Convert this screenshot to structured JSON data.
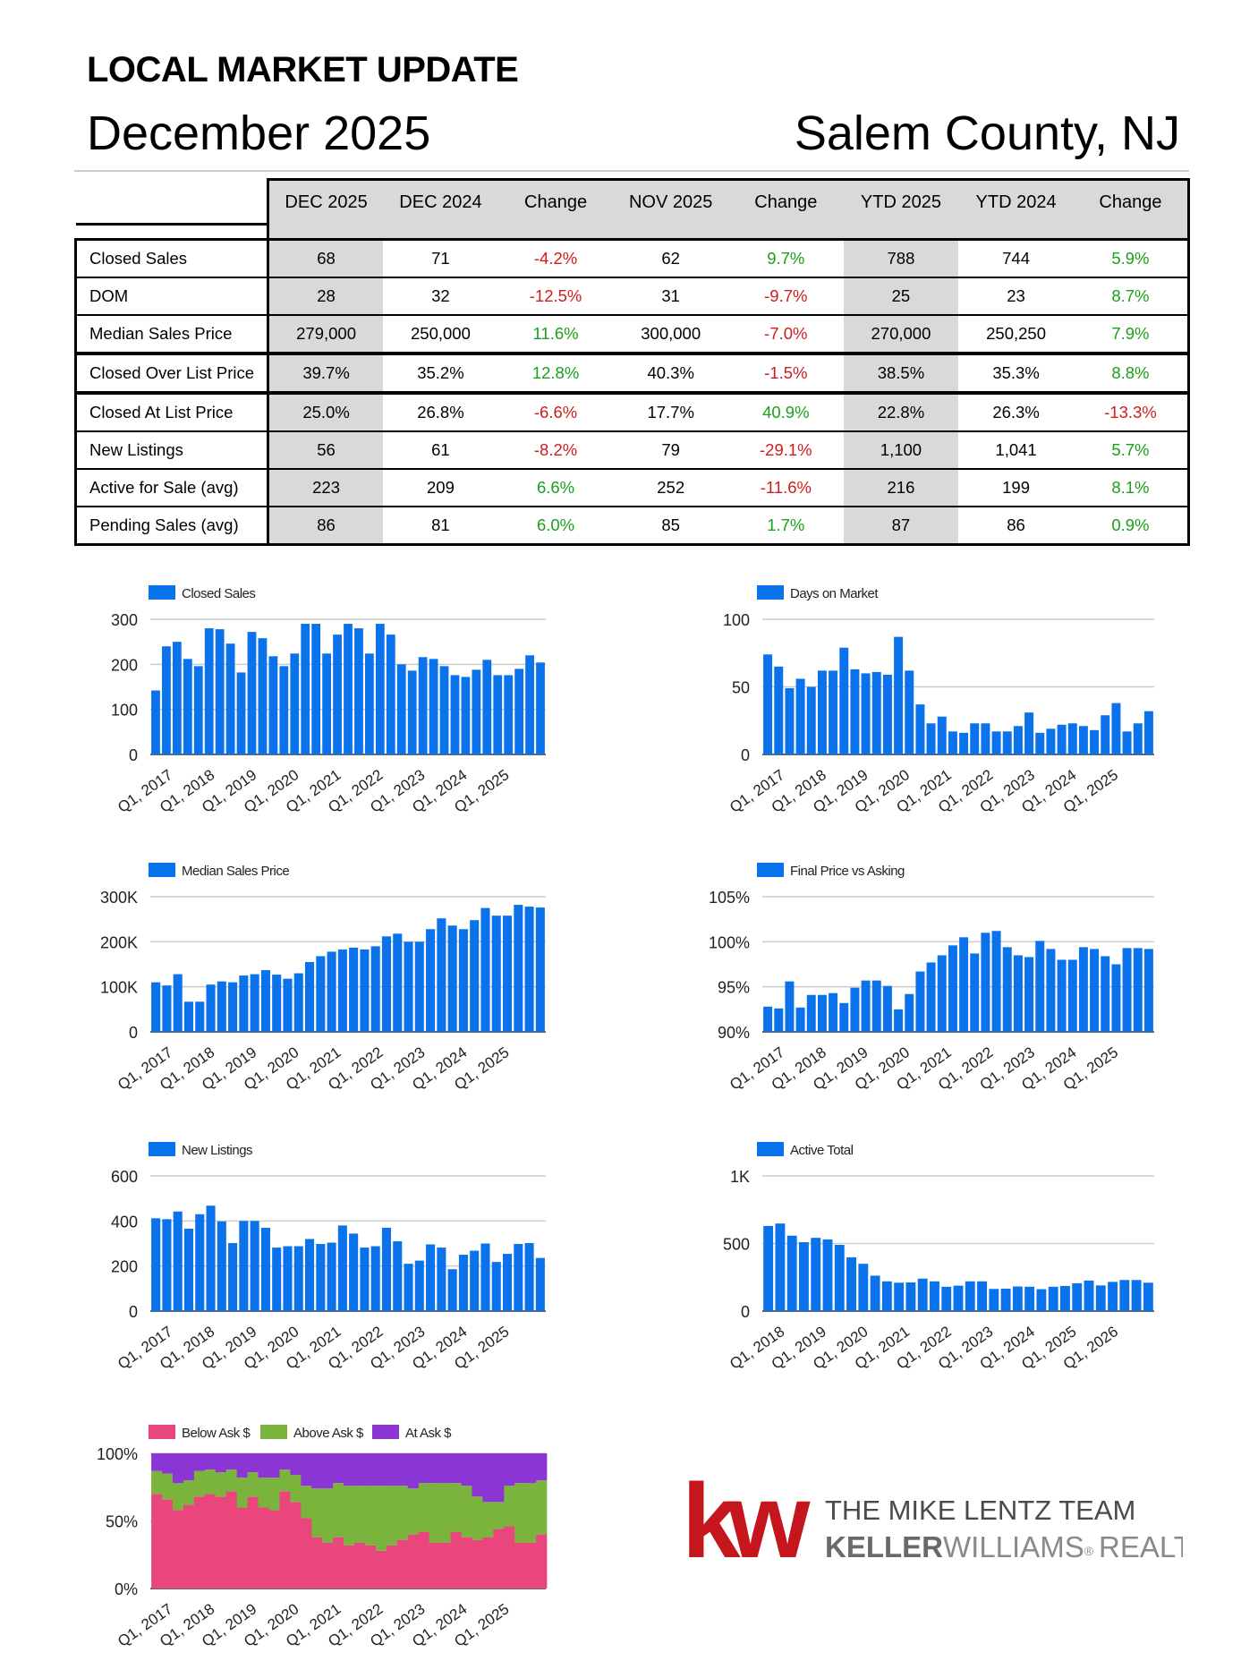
{
  "header": {
    "title": "LOCAL MARKET UPDATE",
    "date": "December 2025",
    "location": "Salem County, NJ"
  },
  "table": {
    "columns": [
      "DEC 2025",
      "DEC 2024",
      "Change",
      "NOV 2025",
      "Change",
      "YTD 2025",
      "YTD 2024",
      "Change"
    ],
    "rows": [
      {
        "label": "Closed Sales",
        "values": [
          "68",
          "71",
          "-4.2%",
          "62",
          "9.7%",
          "788",
          "744",
          "5.9%"
        ]
      },
      {
        "label": "DOM",
        "values": [
          "28",
          "32",
          "-12.5%",
          "31",
          "-9.7%",
          "25",
          "23",
          "8.7%"
        ]
      },
      {
        "label": "Median Sales Price",
        "values": [
          "279,000",
          "250,000",
          "11.6%",
          "300,000",
          "-7.0%",
          "270,000",
          "250,250",
          "7.9%"
        ]
      },
      {
        "label": "Closed Over List Price",
        "values": [
          "39.7%",
          "35.2%",
          "12.8%",
          "40.3%",
          "-1.5%",
          "38.5%",
          "35.3%",
          "8.8%"
        ]
      },
      {
        "label": "Closed At List Price",
        "values": [
          "25.0%",
          "26.8%",
          "-6.6%",
          "17.7%",
          "40.9%",
          "22.8%",
          "26.3%",
          "-13.3%"
        ]
      },
      {
        "label": "New Listings",
        "values": [
          "56",
          "61",
          "-8.2%",
          "79",
          "-29.1%",
          "1,100",
          "1,041",
          "5.7%"
        ]
      },
      {
        "label": "Active for Sale (avg)",
        "values": [
          "223",
          "209",
          "6.6%",
          "252",
          "-11.6%",
          "216",
          "199",
          "8.1%"
        ]
      },
      {
        "label": "Pending Sales (avg)",
        "values": [
          "86",
          "81",
          "6.0%",
          "85",
          "1.7%",
          "87",
          "86",
          "0.9%"
        ]
      }
    ]
  },
  "colors": {
    "bar": "#0a73eb",
    "below": "#e8467c",
    "above": "#7ab43c",
    "at": "#8a35d4",
    "positive": "#1aa11a",
    "negative": "#d01c1c"
  },
  "logo": {
    "mark": "kw",
    "team": "THE MIKE LENTZ TEAM",
    "brand_a": "KELLER",
    "brand_b": "WILLIAMS",
    "brand_c": "REALTY"
  },
  "chart_data": [
    {
      "type": "bar",
      "legend": "Closed Sales",
      "ylim": [
        0,
        300
      ],
      "yticks": [
        "0",
        "100",
        "200",
        "300"
      ],
      "xticks": [
        "Q1, 2017",
        "Q1, 2018",
        "Q1, 2019",
        "Q1, 2020",
        "Q1, 2021",
        "Q1, 2022",
        "Q1, 2023",
        "Q1, 2024",
        "Q1, 2025"
      ],
      "values": [
        142,
        240,
        250,
        212,
        196,
        280,
        278,
        246,
        182,
        272,
        258,
        218,
        196,
        224,
        290,
        290,
        224,
        266,
        290,
        280,
        224,
        290,
        266,
        200,
        186,
        216,
        212,
        196,
        176,
        172,
        188,
        210,
        176,
        176,
        190,
        220,
        204
      ]
    },
    {
      "type": "bar",
      "legend": "Days on Market",
      "ylim": [
        0,
        100
      ],
      "yticks": [
        "0",
        "50",
        "100"
      ],
      "xticks": [
        "Q1, 2017",
        "Q1, 2018",
        "Q1, 2019",
        "Q1, 2020",
        "Q1, 2021",
        "Q1, 2022",
        "Q1, 2023",
        "Q1, 2024",
        "Q1, 2025"
      ],
      "values": [
        74,
        65,
        49,
        56,
        50,
        62,
        62,
        79,
        63,
        60,
        61,
        59,
        87,
        62,
        37,
        23,
        28,
        17,
        16,
        23,
        23,
        17,
        17,
        21,
        31,
        16,
        19,
        22,
        23,
        21,
        18,
        29,
        38,
        17,
        23,
        32
      ]
    },
    {
      "type": "bar",
      "legend": "Median Sales Price",
      "ylim": [
        0,
        300000
      ],
      "yticks": [
        "0",
        "100K",
        "200K",
        "300K"
      ],
      "xticks": [
        "Q1, 2017",
        "Q1, 2018",
        "Q1, 2019",
        "Q1, 2020",
        "Q1, 2021",
        "Q1, 2022",
        "Q1, 2023",
        "Q1, 2024",
        "Q1, 2025"
      ],
      "values": [
        110000,
        103000,
        128000,
        67000,
        67000,
        105000,
        112000,
        110000,
        125000,
        128000,
        137000,
        127000,
        118000,
        130000,
        155000,
        168000,
        178000,
        183000,
        187000,
        183000,
        190000,
        212000,
        218000,
        200000,
        200000,
        228000,
        252000,
        236000,
        228000,
        248000,
        275000,
        258000,
        258000,
        282000,
        278000,
        276000
      ]
    },
    {
      "type": "bar",
      "legend": "Final Price vs Asking",
      "ylim": [
        90,
        105
      ],
      "yticks": [
        "90%",
        "95%",
        "100%",
        "105%"
      ],
      "xticks": [
        "Q1, 2017",
        "Q1, 2018",
        "Q1, 2019",
        "Q1, 2020",
        "Q1, 2021",
        "Q1, 2022",
        "Q1, 2023",
        "Q1, 2024",
        "Q1, 2025"
      ],
      "values": [
        92.8,
        92.6,
        95.6,
        92.7,
        94.1,
        94.1,
        94.3,
        93.2,
        94.9,
        95.7,
        95.7,
        95.1,
        92.5,
        94.2,
        96.7,
        97.7,
        98.5,
        99.6,
        100.5,
        98.7,
        101,
        101.2,
        99.4,
        98.5,
        98.3,
        100.1,
        99.2,
        98.0,
        98.0,
        99.4,
        99.2,
        98.4,
        97.5,
        99.3,
        99.3,
        99.2
      ]
    },
    {
      "type": "bar",
      "legend": "New Listings",
      "ylim": [
        0,
        600
      ],
      "yticks": [
        "0",
        "200",
        "400",
        "600"
      ],
      "xticks": [
        "Q1, 2017",
        "Q1, 2018",
        "Q1, 2019",
        "Q1, 2020",
        "Q1, 2021",
        "Q1, 2022",
        "Q1, 2023",
        "Q1, 2024",
        "Q1, 2025"
      ],
      "values": [
        412,
        408,
        442,
        366,
        430,
        468,
        398,
        302,
        400,
        400,
        370,
        282,
        288,
        288,
        320,
        298,
        304,
        380,
        344,
        282,
        288,
        370,
        310,
        210,
        224,
        296,
        282,
        186,
        250,
        268,
        300,
        218,
        254,
        298,
        302,
        236
      ]
    },
    {
      "type": "bar",
      "legend": "Active Total",
      "ylim": [
        0,
        1000
      ],
      "yticks": [
        "0",
        "500",
        "1K"
      ],
      "xticks": [
        "Q1, 2018",
        "Q1, 2019",
        "Q1, 2020",
        "Q1, 2021",
        "Q1, 2022",
        "Q1, 2023",
        "Q1, 2024",
        "Q1, 2025",
        "Q1, 2026"
      ],
      "values": [
        630,
        648,
        558,
        510,
        542,
        530,
        490,
        398,
        350,
        262,
        220,
        210,
        212,
        240,
        220,
        180,
        188,
        220,
        220,
        164,
        166,
        182,
        180,
        162,
        180,
        186,
        206,
        226,
        190,
        216,
        230,
        230,
        210
      ]
    },
    {
      "type": "bar",
      "stacked": true,
      "ylim": [
        0,
        100
      ],
      "yticks": [
        "0%",
        "50%",
        "100%"
      ],
      "xticks": [
        "Q1, 2017",
        "Q1, 2018",
        "Q1, 2019",
        "Q1, 2020",
        "Q1, 2021",
        "Q1, 2022",
        "Q1, 2023",
        "Q1, 2024",
        "Q1, 2025"
      ],
      "series": [
        {
          "name": "Below Ask $",
          "values": [
            70,
            66,
            58,
            62,
            68,
            70,
            68,
            72,
            60,
            68,
            60,
            58,
            72,
            64,
            52,
            38,
            34,
            38,
            32,
            34,
            32,
            28,
            32,
            36,
            40,
            42,
            34,
            34,
            42,
            38,
            36,
            38,
            44,
            46,
            34,
            34,
            40
          ]
        },
        {
          "name": "Above Ask $",
          "values": [
            17,
            19,
            20,
            18,
            19,
            18,
            18,
            16,
            22,
            18,
            22,
            24,
            16,
            20,
            24,
            36,
            40,
            40,
            44,
            42,
            44,
            48,
            44,
            40,
            34,
            36,
            44,
            44,
            36,
            38,
            32,
            26,
            20,
            30,
            44,
            44,
            40
          ]
        },
        {
          "name": "At Ask $",
          "values": [
            13,
            15,
            22,
            20,
            13,
            12,
            14,
            12,
            18,
            14,
            18,
            18,
            12,
            16,
            24,
            26,
            26,
            22,
            24,
            24,
            24,
            24,
            24,
            24,
            26,
            22,
            22,
            22,
            22,
            24,
            32,
            36,
            36,
            24,
            22,
            22,
            20
          ]
        }
      ]
    }
  ]
}
